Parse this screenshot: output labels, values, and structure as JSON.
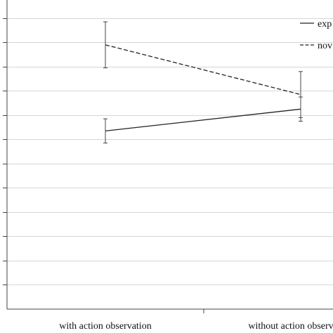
{
  "chart_data": {
    "type": "line",
    "categories": [
      "with action observation",
      "without action observation"
    ],
    "series": [
      {
        "name": "exp",
        "values": [
          7.35,
          8.25
        ],
        "error": [
          0.5,
          0.5
        ],
        "line_style": "solid",
        "color": "#222222"
      },
      {
        "name": "nov",
        "values": [
          10.9,
          8.85
        ],
        "error": [
          0.95,
          0.95
        ],
        "line_style": "dashed",
        "color": "#222222"
      }
    ],
    "ylim": [
      0,
      12.75
    ],
    "ytick_step": 1,
    "grid": true,
    "legend_position": "top-right"
  }
}
